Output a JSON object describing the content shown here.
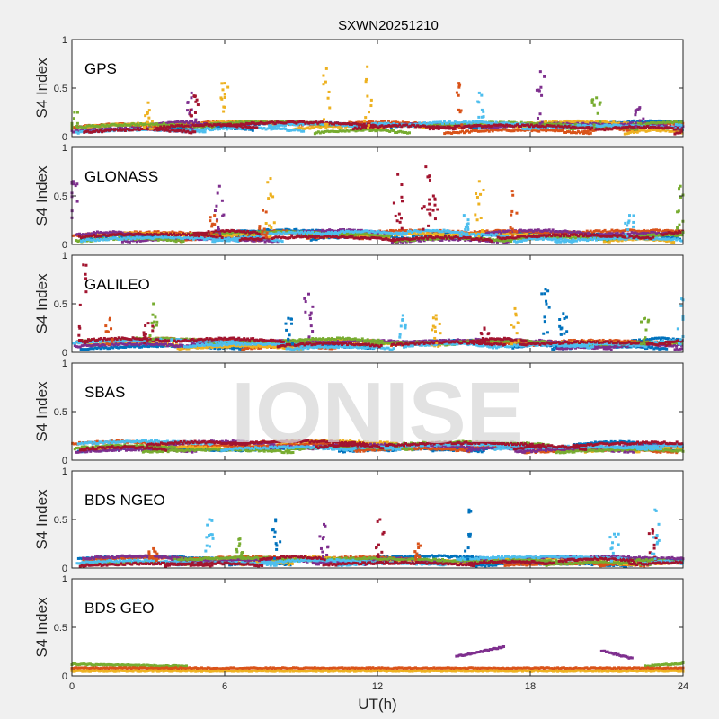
{
  "chart_data": {
    "type": "scatter",
    "title": "SXWN20251210",
    "xlabel": "UT(h)",
    "ylabel": "S4 Index",
    "xlim": [
      0,
      24
    ],
    "ylim": [
      0,
      1
    ],
    "xticks": [
      "0",
      "6",
      "12",
      "18",
      "24"
    ],
    "yticks": [
      "0",
      "0.5",
      "1"
    ],
    "grid": false,
    "watermark": "IONISE",
    "series_colors": [
      "#0072BD",
      "#D95319",
      "#EDB120",
      "#7E2F8E",
      "#77AC30",
      "#4DBEEE",
      "#A2142F"
    ],
    "panels": [
      {
        "name": "GPS",
        "baseline": [
          0.03,
          0.13
        ],
        "spikes": [
          {
            "t": 3.0,
            "peak": 0.35,
            "color": 2
          },
          {
            "t": 4.7,
            "peak": 0.45,
            "color": 3
          },
          {
            "t": 4.8,
            "peak": 0.42,
            "color": 6
          },
          {
            "t": 6.0,
            "peak": 0.55,
            "color": 2
          },
          {
            "t": 10.0,
            "peak": 0.7,
            "color": 2
          },
          {
            "t": 11.6,
            "peak": 0.72,
            "color": 2
          },
          {
            "t": 15.2,
            "peak": 0.55,
            "color": 1
          },
          {
            "t": 16.0,
            "peak": 0.45,
            "color": 5
          },
          {
            "t": 18.4,
            "peak": 0.67,
            "color": 3
          },
          {
            "t": 20.6,
            "peak": 0.4,
            "color": 4
          },
          {
            "t": 22.3,
            "peak": 0.3,
            "color": 3
          },
          {
            "t": 0.1,
            "peak": 0.25,
            "color": 4
          }
        ]
      },
      {
        "name": "GLONASS",
        "baseline": [
          0.02,
          0.12
        ],
        "spikes": [
          {
            "t": 0.05,
            "peak": 0.65,
            "color": 3
          },
          {
            "t": 5.8,
            "peak": 0.6,
            "color": 3
          },
          {
            "t": 5.6,
            "peak": 0.3,
            "color": 1
          },
          {
            "t": 7.8,
            "peak": 0.68,
            "color": 2
          },
          {
            "t": 7.5,
            "peak": 0.35,
            "color": 1
          },
          {
            "t": 12.8,
            "peak": 0.72,
            "color": 6
          },
          {
            "t": 13.9,
            "peak": 0.8,
            "color": 6
          },
          {
            "t": 14.2,
            "peak": 0.5,
            "color": 6
          },
          {
            "t": 16.0,
            "peak": 0.65,
            "color": 2
          },
          {
            "t": 15.4,
            "peak": 0.3,
            "color": 5
          },
          {
            "t": 17.3,
            "peak": 0.55,
            "color": 1
          },
          {
            "t": 21.9,
            "peak": 0.3,
            "color": 5
          },
          {
            "t": 23.9,
            "peak": 0.6,
            "color": 4
          }
        ]
      },
      {
        "name": "GALILEO",
        "baseline": [
          0.03,
          0.12
        ],
        "spikes": [
          {
            "t": 0.45,
            "peak": 0.9,
            "color": 6
          },
          {
            "t": 1.5,
            "peak": 0.35,
            "color": 1
          },
          {
            "t": 3.2,
            "peak": 0.5,
            "color": 4
          },
          {
            "t": 3.0,
            "peak": 0.3,
            "color": 6
          },
          {
            "t": 8.5,
            "peak": 0.35,
            "color": 0
          },
          {
            "t": 9.3,
            "peak": 0.6,
            "color": 3
          },
          {
            "t": 13.0,
            "peak": 0.38,
            "color": 5
          },
          {
            "t": 14.3,
            "peak": 0.38,
            "color": 2
          },
          {
            "t": 16.2,
            "peak": 0.25,
            "color": 6
          },
          {
            "t": 17.4,
            "peak": 0.45,
            "color": 2
          },
          {
            "t": 18.6,
            "peak": 0.65,
            "color": 0
          },
          {
            "t": 19.3,
            "peak": 0.4,
            "color": 0
          },
          {
            "t": 22.5,
            "peak": 0.35,
            "color": 4
          },
          {
            "t": 23.95,
            "peak": 0.55,
            "color": 5
          }
        ]
      },
      {
        "name": "SBAS",
        "baseline": [
          0.08,
          0.17
        ],
        "spikes": []
      },
      {
        "name": "BDS NGEO",
        "baseline": [
          0.02,
          0.1
        ],
        "spikes": [
          {
            "t": 3.2,
            "peak": 0.2,
            "color": 1
          },
          {
            "t": 5.4,
            "peak": 0.5,
            "color": 5
          },
          {
            "t": 6.6,
            "peak": 0.3,
            "color": 4
          },
          {
            "t": 8.0,
            "peak": 0.5,
            "color": 0
          },
          {
            "t": 9.9,
            "peak": 0.45,
            "color": 3
          },
          {
            "t": 12.1,
            "peak": 0.5,
            "color": 6
          },
          {
            "t": 13.6,
            "peak": 0.25,
            "color": 1
          },
          {
            "t": 15.6,
            "peak": 0.6,
            "color": 0
          },
          {
            "t": 21.3,
            "peak": 0.35,
            "color": 5
          },
          {
            "t": 22.8,
            "peak": 0.4,
            "color": 6
          },
          {
            "t": 22.9,
            "peak": 0.6,
            "color": 5
          }
        ]
      },
      {
        "name": "BDS GEO",
        "baseline": [
          0.05,
          0.08
        ],
        "segments": [
          {
            "t0": 0,
            "t1": 4.5,
            "v0": 0.12,
            "v1": 0.1,
            "color": 4
          },
          {
            "t0": 22.5,
            "t1": 24,
            "v0": 0.1,
            "v1": 0.13,
            "color": 4
          },
          {
            "t0": 0,
            "t1": 24,
            "v0": 0.08,
            "v1": 0.08,
            "color": 1
          },
          {
            "t0": 0,
            "t1": 24,
            "v0": 0.05,
            "v1": 0.05,
            "color": 2
          },
          {
            "t0": 15.1,
            "t1": 17.0,
            "v0": 0.2,
            "v1": 0.3,
            "color": 3
          },
          {
            "t0": 20.8,
            "t1": 22.0,
            "v0": 0.26,
            "v1": 0.18,
            "color": 3
          }
        ],
        "spikes": []
      }
    ]
  }
}
